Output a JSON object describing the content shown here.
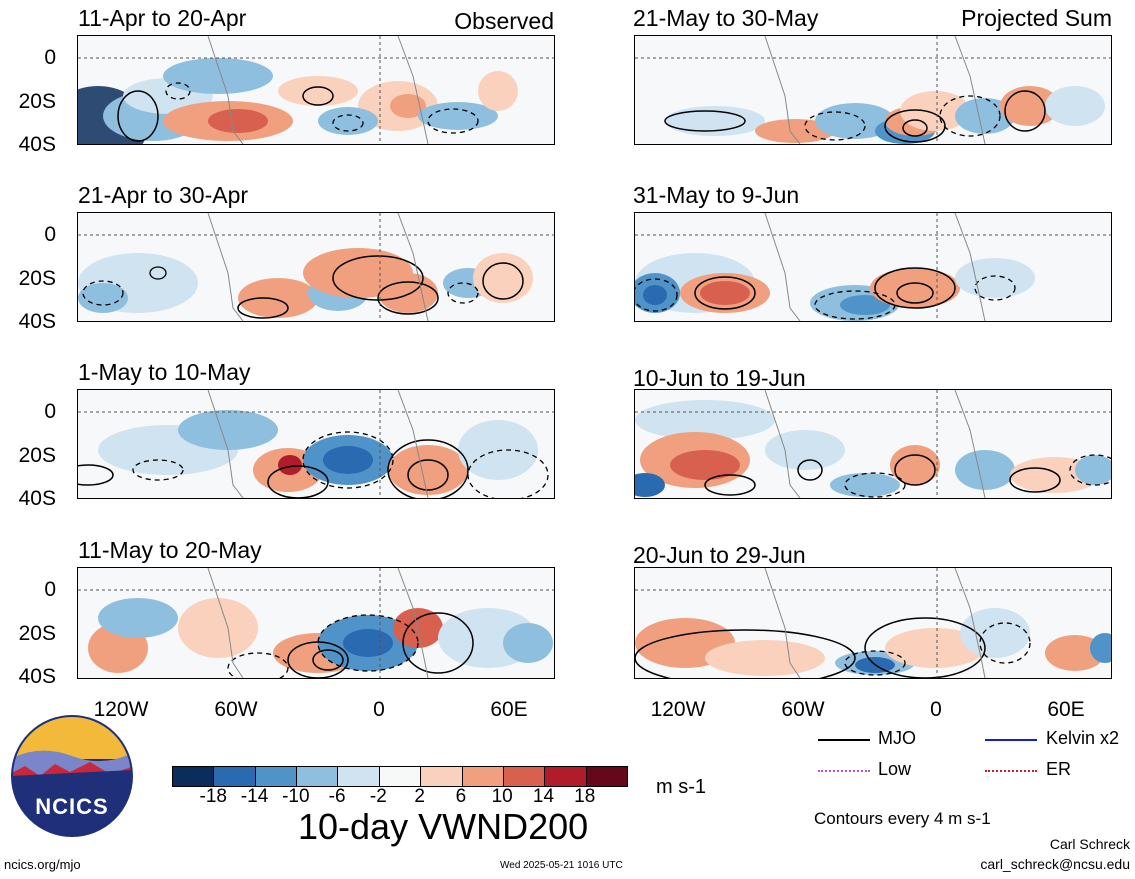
{
  "panels_left": [
    {
      "title": "11-Apr to 20-Apr",
      "tag": "Observed"
    },
    {
      "title": "21-Apr to 30-Apr",
      "tag": ""
    },
    {
      "title": "1-May to 10-May",
      "tag": ""
    },
    {
      "title": "11-May to 20-May",
      "tag": ""
    }
  ],
  "panels_right": [
    {
      "title": "21-May to 30-May",
      "tag": "Projected Sum"
    },
    {
      "title": "31-May to 9-Jun",
      "tag": ""
    },
    {
      "title": "10-Jun to 19-Jun",
      "tag": ""
    },
    {
      "title": "20-Jun to 29-Jun",
      "tag": ""
    }
  ],
  "y_ticks": [
    "0",
    "20S",
    "40S"
  ],
  "x_ticks": [
    "120W",
    "60W",
    "0",
    "60E"
  ],
  "colorbar": {
    "labels": [
      "-18",
      "-14",
      "-10",
      "-6",
      "-2",
      "2",
      "6",
      "10",
      "14",
      "18"
    ],
    "colors": [
      "#0b2d5c",
      "#2a6ab0",
      "#4f93c9",
      "#8fbfde",
      "#cfe3f0",
      "#f7f9f9",
      "#fad1bd",
      "#f0a07e",
      "#d8604f",
      "#b01c2a",
      "#66081c"
    ],
    "units": "m s-1"
  },
  "main_title": "10-day VWND200",
  "legend": {
    "items": [
      {
        "label": "MJO",
        "color": "#000000"
      },
      {
        "label": "Kelvin x2",
        "color": "#1a1adb"
      },
      {
        "label": "Low",
        "color": "#b455d8"
      },
      {
        "label": "ER",
        "color": "#d81a1a"
      }
    ],
    "contour_note": "Contours every 4 m s-1"
  },
  "logo_text": "NCICS",
  "footer": {
    "site": "ncics.org/mjo",
    "timestamp": "Wed 2025-05-21 1016 UTC",
    "author": "Carl Schreck",
    "email": "carl_schreck@ncsu.edu"
  }
}
